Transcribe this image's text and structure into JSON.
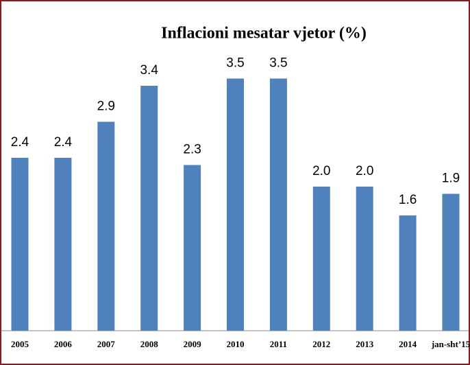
{
  "chart_data": {
    "type": "bar",
    "title": "Inflacioni mesatar vjetor (%)",
    "categories": [
      "2005",
      "2006",
      "2007",
      "2008",
      "2009",
      "2010",
      "2011",
      "2012",
      "2013",
      "2014",
      "jan-sht’15"
    ],
    "values": [
      2.4,
      2.4,
      2.9,
      3.4,
      2.3,
      3.5,
      3.5,
      2.0,
      2.0,
      1.6,
      1.9
    ],
    "value_labels": [
      "2.4",
      "2.4",
      "2.9",
      "3.4",
      "2.3",
      "3.5",
      "3.5",
      "2.0",
      "2.0",
      "1.6",
      "1.9"
    ],
    "color": "#4f81bd"
  }
}
